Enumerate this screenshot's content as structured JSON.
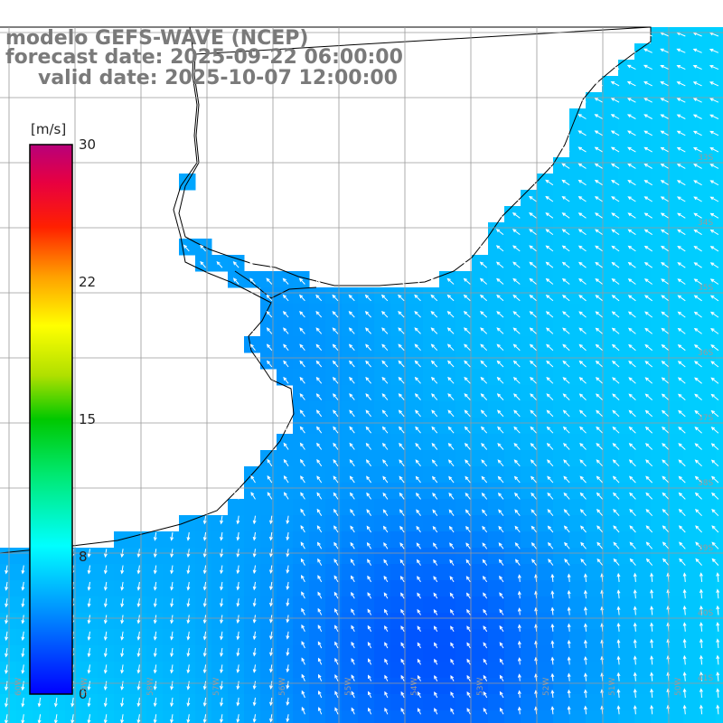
{
  "title": {
    "line1": "modelo GEFS-WAVE (NCEP)",
    "line2": "forecast date: 2025-09-22 06:00:00",
    "line3": "valid date: 2025-10-07 12:00:00"
  },
  "colorbar": {
    "unit_label": "[m/s]",
    "tick_labels": [
      "30",
      "22",
      "15",
      "8",
      "0"
    ],
    "tick_values": [
      30,
      22,
      15,
      8,
      0
    ],
    "colors": [
      "#0000ff",
      "#0090ff",
      "#00e8ff",
      "#00ff90",
      "#00c800",
      "#90e000",
      "#ffff00",
      "#ffa000",
      "#ff4000",
      "#ff0000",
      "#e00060",
      "#b8007a"
    ]
  },
  "map": {
    "land_color": "#ffffff",
    "coast_color": "#000000",
    "grid_color": "#9a9a9a",
    "lon_labels": [
      "60W",
      "59W",
      "58W",
      "57W",
      "56W",
      "55W",
      "54W",
      "53W",
      "52W",
      "51W",
      "50W"
    ],
    "lat_labels": [
      "33S",
      "34S",
      "35S",
      "36S",
      "37S",
      "38S",
      "39S",
      "40S",
      "41S"
    ]
  },
  "colors": {
    "title_gray": "#7a7a7a",
    "arrow_white": "#ffffff"
  }
}
